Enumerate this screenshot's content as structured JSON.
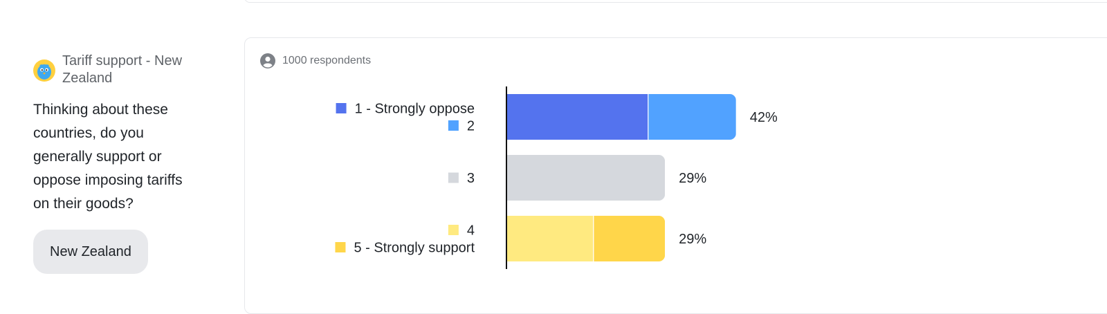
{
  "survey": {
    "title": "Tariff support - New Zealand",
    "question": "Thinking about these countries, do you generally support or oppose imposing tariffs on their goods?",
    "tag": "New Zealand"
  },
  "card": {
    "respondents": "1000 respondents"
  },
  "icons": {
    "avatar": "bird-avatar-icon",
    "respondents": "person-circle-icon"
  },
  "chart_data": {
    "type": "bar",
    "orientation": "horizontal",
    "stacked": true,
    "bars": [
      {
        "total_label": "42%",
        "segments": [
          {
            "label": "1 - Strongly oppose",
            "value": 26,
            "color": "#5473EE"
          },
          {
            "label": "2",
            "value": 16,
            "color": "#51A2FF"
          }
        ]
      },
      {
        "total_label": "29%",
        "segments": [
          {
            "label": "3",
            "value": 29,
            "color": "#D5D8DD"
          }
        ]
      },
      {
        "total_label": "29%",
        "segments": [
          {
            "label": "4",
            "value": 16,
            "color": "#FFEA80"
          },
          {
            "label": "5 - Strongly support",
            "value": 13,
            "color": "#FFD64A"
          }
        ]
      }
    ],
    "xlim": [
      0,
      100
    ],
    "grid": false,
    "legend": "left-of-bars"
  }
}
